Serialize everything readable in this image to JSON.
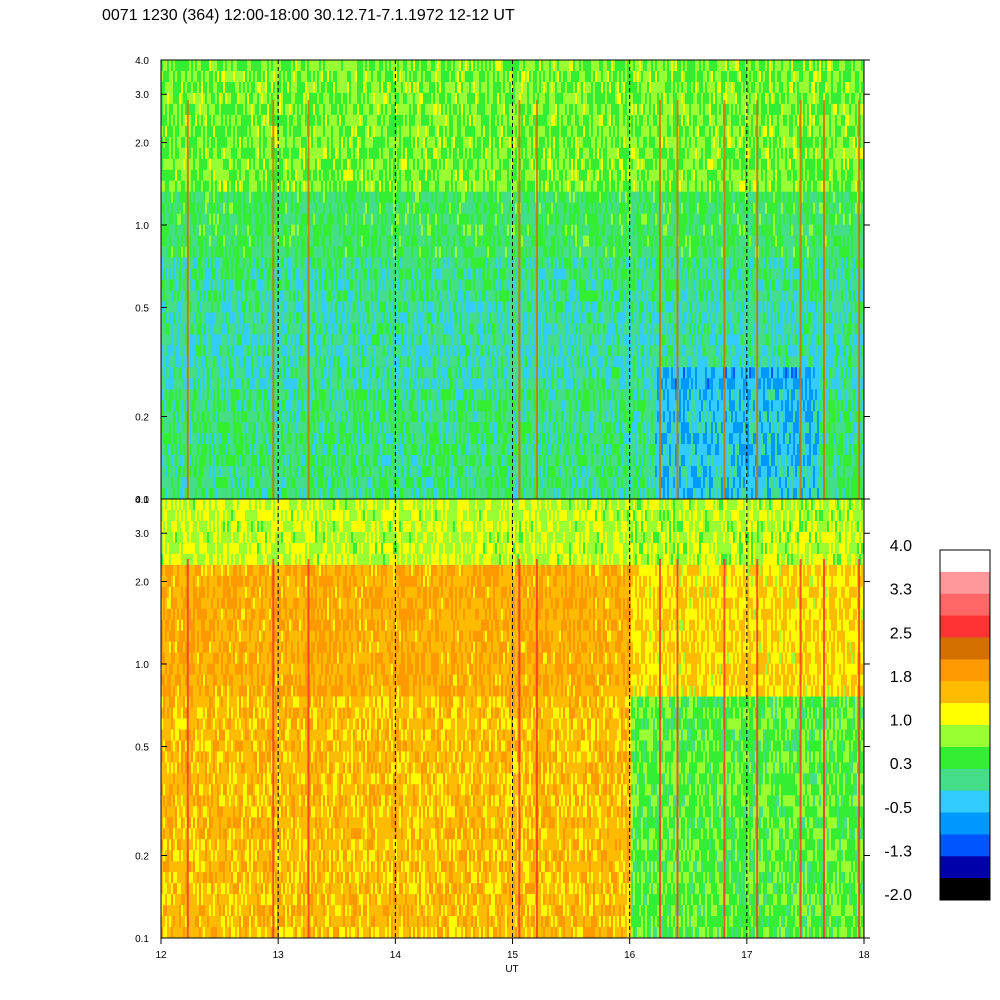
{
  "chart_data": {
    "type": "heatmap",
    "title": "0071 1230 (364) 12:00-18:00 30.12.71-7.1.1972  12-12 UT",
    "xlabel": "UT",
    "xlim": [
      12,
      18
    ],
    "x_ticks": [
      "12",
      "13",
      "14",
      "15",
      "16",
      "17",
      "18"
    ],
    "dashed_vertical_lines_at": [
      13,
      14,
      15,
      16,
      17
    ],
    "y_scale": "log",
    "panels": [
      {
        "name": "upper",
        "ylim": [
          0.1,
          4.0
        ],
        "y_ticks": [
          "0.1",
          "0.2",
          "0.5",
          "1.0",
          "2.0",
          "3.0",
          "4.0"
        ],
        "dominant_levels": "green to light-blue (0.3 to -0.5), with yellow-green streaks near the top; red/orange vertical bursts after 16 UT"
      },
      {
        "name": "lower",
        "ylim": [
          0.1,
          4.0
        ],
        "y_ticks": [
          "0.1",
          "0.2",
          "0.5",
          "1.0",
          "2.0",
          "3.0",
          "4.0"
        ],
        "dominant_levels": "orange to yellow (1.0 to 2.0) before about 16 UT, green-yellow (0.3 to 1.0) after 16 UT"
      }
    ],
    "colorbar": {
      "labels": [
        "4.0",
        "3.3",
        "2.5",
        "1.8",
        "1.0",
        "0.3",
        "-0.5",
        "-1.3",
        "-2.0"
      ],
      "colors": [
        "#ffffff",
        "#ff9999",
        "#ff6666",
        "#ff3333",
        "#d47000",
        "#ff9900",
        "#ffbb00",
        "#ffff00",
        "#99ff33",
        "#33ee33",
        "#44dd88",
        "#33ccff",
        "#0099ff",
        "#0055ff",
        "#0000aa",
        "#000000"
      ]
    }
  }
}
